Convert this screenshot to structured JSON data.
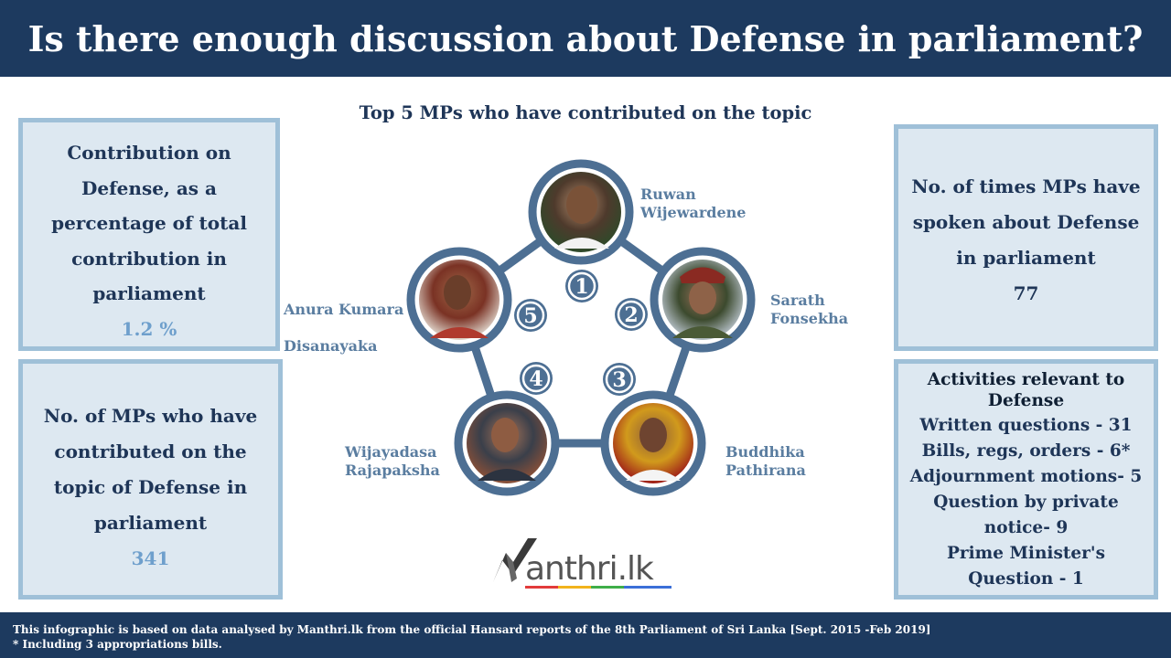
{
  "title": "Is there enough discussion about Defense in parliament?",
  "subtitle": "Top 5 MPs who have contributed on the topic",
  "contribution": {
    "label": "Contribution on Defense, as a percentage of total contribution in parliament",
    "value": "1.2 %"
  },
  "mps_count": {
    "label": "No. of MPs who have contributed on the topic of Defense in parliament",
    "value": "341"
  },
  "times_spoken": {
    "label": "No. of times MPs have spoken about Defense in parliament",
    "value": "77"
  },
  "activities": {
    "title": "Activities relevant to Defense",
    "items": [
      "Written questions - 31",
      "Bills, regs, orders - 6*",
      "Adjournment motions- 5",
      "Question by private notice- 9",
      "Prime Minister's Question - 1"
    ]
  },
  "mps": [
    {
      "rank": "1",
      "first": "Ruwan",
      "last": "Wijewardene"
    },
    {
      "rank": "2",
      "first": "Sarath",
      "last": "Fonsekha"
    },
    {
      "rank": "3",
      "first": "Buddhika",
      "last": "Pathirana"
    },
    {
      "rank": "4",
      "first": "Wijayadasa",
      "last": "Rajapaksha"
    },
    {
      "rank": "5",
      "first": "Anura Kumara",
      "last": "Disanayaka"
    }
  ],
  "logo": {
    "text": "anthri.lk",
    "brand": "Manthri.lk"
  },
  "footer": {
    "line1": "This infographic is based on data analysed by Manthri.lk from the official Hansard reports of the 8th Parliament of Sri Lanka [Sept. 2015 -Feb 2019]",
    "line2": "* Including 3 appropriations bills."
  },
  "colors": {
    "navy": "#1d3a5f",
    "panel_bg": "#dde8f1",
    "panel_border": "#9fc0d8",
    "value_blue": "#6e9fcc",
    "ring": "#4d6f93"
  }
}
